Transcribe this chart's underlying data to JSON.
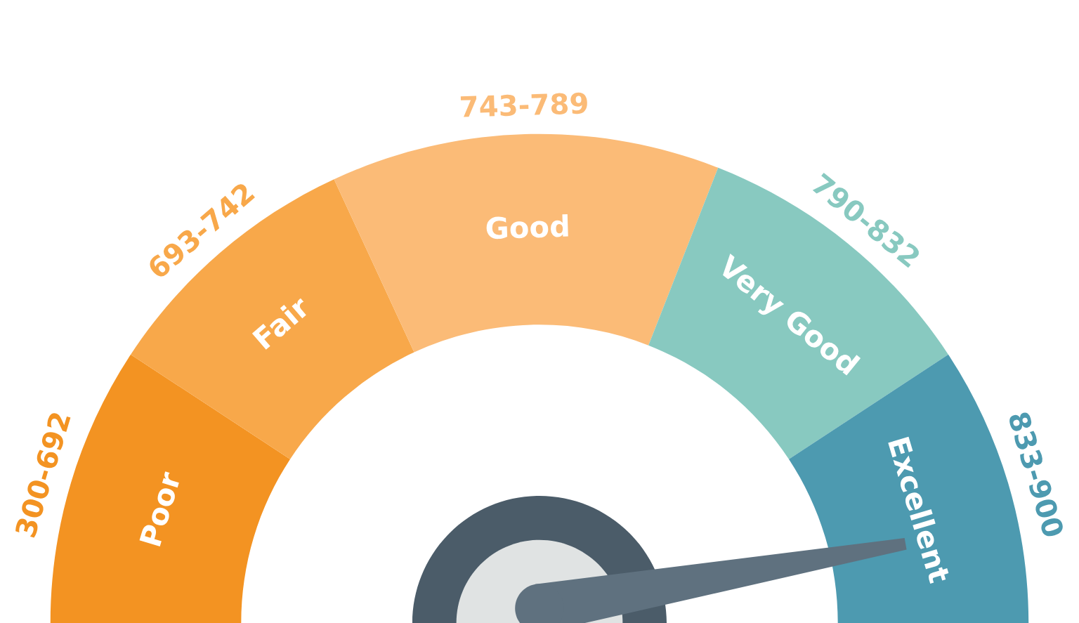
{
  "chart_data": {
    "type": "donut",
    "categories": [
      "Poor",
      "Fair",
      "Good",
      "Very Good",
      "Excellent"
    ],
    "values": [
      18.5,
      17.7,
      25.7,
      19.6,
      18.5
    ],
    "colors": [
      "#f39322",
      "#f8a84a",
      "#fbbb77",
      "#88c9c0",
      "#4d9ab0"
    ],
    "needle": "Excellent",
    "annotations": [
      "300-692",
      "693-742",
      "743-789",
      "790-832",
      "833-900"
    ]
  }
}
